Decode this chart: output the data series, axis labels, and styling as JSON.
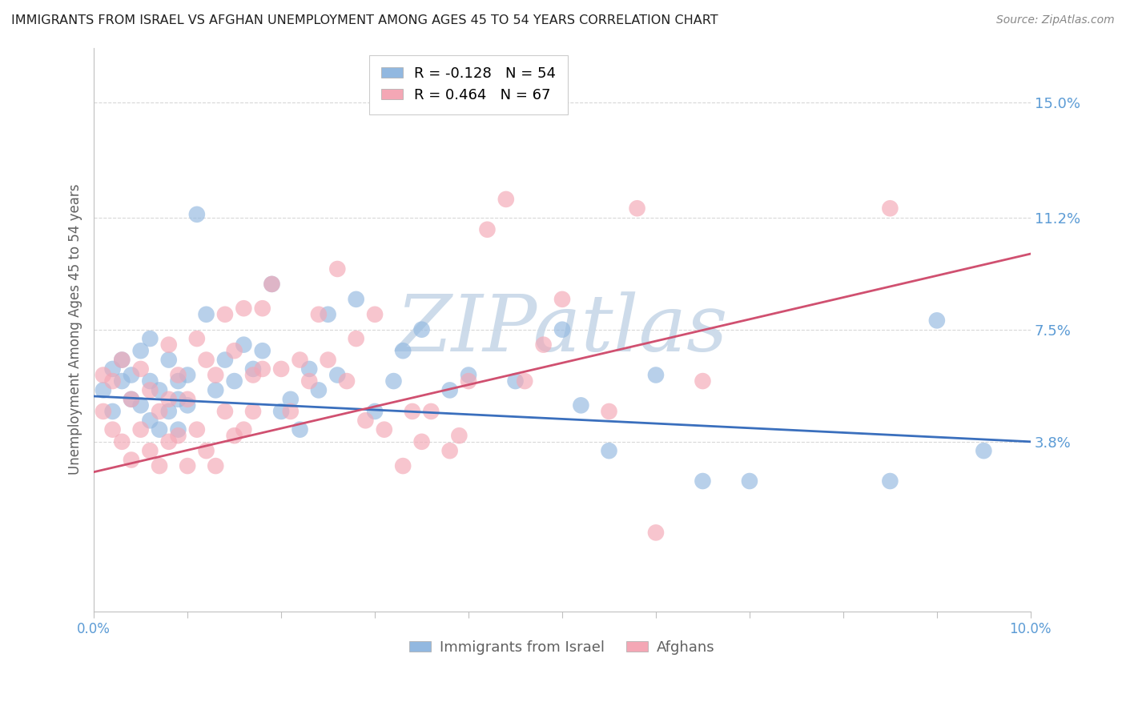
{
  "title": "IMMIGRANTS FROM ISRAEL VS AFGHAN UNEMPLOYMENT AMONG AGES 45 TO 54 YEARS CORRELATION CHART",
  "source": "Source: ZipAtlas.com",
  "ylabel": "Unemployment Among Ages 45 to 54 years",
  "xlim": [
    0.0,
    0.1
  ],
  "ylim": [
    -0.018,
    0.168
  ],
  "xticks": [
    0.0,
    0.01,
    0.02,
    0.03,
    0.04,
    0.05,
    0.06,
    0.07,
    0.08,
    0.09,
    0.1
  ],
  "xticklabels": [
    "0.0%",
    "",
    "",
    "",
    "",
    "",
    "",
    "",
    "",
    "",
    "10.0%"
  ],
  "yticks_right": [
    0.038,
    0.075,
    0.112,
    0.15
  ],
  "yticklabels_right": [
    "3.8%",
    "7.5%",
    "11.2%",
    "15.0%"
  ],
  "israel_R": -0.128,
  "israel_N": 54,
  "afghan_R": 0.464,
  "afghan_N": 67,
  "israel_color": "#92b8e0",
  "afghan_color": "#f4a7b5",
  "israel_line_color": "#3a6fbd",
  "afghan_line_color": "#d05070",
  "watermark_text": "ZIPatlas",
  "watermark_color": "#c8d8e8",
  "legend_israel_label": "Immigrants from Israel",
  "legend_afghan_label": "Afghans",
  "background_color": "#ffffff",
  "grid_color": "#d8d8d8",
  "title_color": "#202020",
  "right_axis_color": "#5b9bd5",
  "israel_line_start_y": 0.053,
  "israel_line_end_y": 0.038,
  "afghan_line_start_y": 0.028,
  "afghan_line_end_y": 0.1,
  "israel_x": [
    0.001,
    0.002,
    0.002,
    0.003,
    0.003,
    0.004,
    0.004,
    0.005,
    0.005,
    0.006,
    0.006,
    0.006,
    0.007,
    0.007,
    0.008,
    0.008,
    0.009,
    0.009,
    0.009,
    0.01,
    0.01,
    0.011,
    0.012,
    0.013,
    0.014,
    0.015,
    0.016,
    0.017,
    0.018,
    0.019,
    0.02,
    0.021,
    0.022,
    0.023,
    0.024,
    0.025,
    0.026,
    0.028,
    0.03,
    0.032,
    0.033,
    0.035,
    0.038,
    0.04,
    0.045,
    0.05,
    0.052,
    0.055,
    0.06,
    0.065,
    0.07,
    0.085,
    0.09,
    0.095
  ],
  "israel_y": [
    0.055,
    0.062,
    0.048,
    0.058,
    0.065,
    0.052,
    0.06,
    0.05,
    0.068,
    0.045,
    0.058,
    0.072,
    0.042,
    0.055,
    0.048,
    0.065,
    0.052,
    0.058,
    0.042,
    0.06,
    0.05,
    0.113,
    0.08,
    0.055,
    0.065,
    0.058,
    0.07,
    0.062,
    0.068,
    0.09,
    0.048,
    0.052,
    0.042,
    0.062,
    0.055,
    0.08,
    0.06,
    0.085,
    0.048,
    0.058,
    0.068,
    0.075,
    0.055,
    0.06,
    0.058,
    0.075,
    0.05,
    0.035,
    0.06,
    0.025,
    0.025,
    0.025,
    0.078,
    0.035
  ],
  "afghan_x": [
    0.001,
    0.001,
    0.002,
    0.002,
    0.003,
    0.003,
    0.004,
    0.004,
    0.005,
    0.005,
    0.006,
    0.006,
    0.007,
    0.007,
    0.008,
    0.008,
    0.008,
    0.009,
    0.009,
    0.01,
    0.01,
    0.011,
    0.011,
    0.012,
    0.012,
    0.013,
    0.013,
    0.014,
    0.014,
    0.015,
    0.015,
    0.016,
    0.016,
    0.017,
    0.017,
    0.018,
    0.018,
    0.019,
    0.02,
    0.021,
    0.022,
    0.023,
    0.024,
    0.025,
    0.026,
    0.027,
    0.028,
    0.029,
    0.03,
    0.031,
    0.033,
    0.034,
    0.035,
    0.036,
    0.038,
    0.039,
    0.04,
    0.042,
    0.044,
    0.046,
    0.048,
    0.05,
    0.055,
    0.058,
    0.06,
    0.065,
    0.085
  ],
  "afghan_y": [
    0.048,
    0.06,
    0.042,
    0.058,
    0.038,
    0.065,
    0.032,
    0.052,
    0.042,
    0.062,
    0.035,
    0.055,
    0.03,
    0.048,
    0.038,
    0.052,
    0.07,
    0.04,
    0.06,
    0.03,
    0.052,
    0.042,
    0.072,
    0.035,
    0.065,
    0.03,
    0.06,
    0.048,
    0.08,
    0.04,
    0.068,
    0.042,
    0.082,
    0.06,
    0.048,
    0.082,
    0.062,
    0.09,
    0.062,
    0.048,
    0.065,
    0.058,
    0.08,
    0.065,
    0.095,
    0.058,
    0.072,
    0.045,
    0.08,
    0.042,
    0.03,
    0.048,
    0.038,
    0.048,
    0.035,
    0.04,
    0.058,
    0.108,
    0.118,
    0.058,
    0.07,
    0.085,
    0.048,
    0.115,
    0.008,
    0.058,
    0.115
  ]
}
